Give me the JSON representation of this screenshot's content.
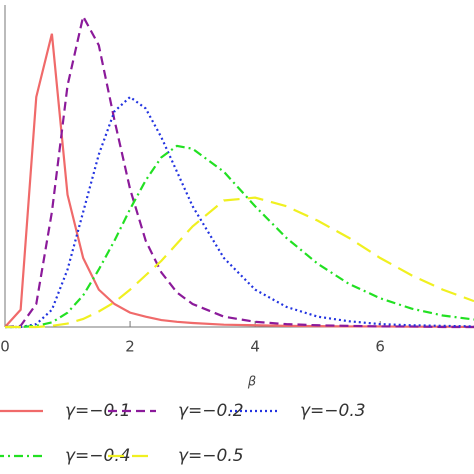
{
  "chart_data": {
    "type": "line",
    "xlabel": "β",
    "x": [
      0,
      0.25,
      0.5,
      0.75,
      1,
      1.25,
      1.5,
      1.75,
      2,
      2.25,
      2.5,
      2.75,
      3,
      3.5,
      4,
      4.5,
      5,
      5.5,
      6,
      6.5,
      7,
      7.5
    ],
    "xlim": [
      0,
      7.5
    ],
    "xticks": [
      0,
      2,
      4,
      6
    ],
    "ylim": [
      0,
      5.6
    ],
    "legend": "bottom",
    "series": [
      {
        "name": "γ=−0.1",
        "color": "#f06a6a",
        "style": "solid",
        "values": [
          0,
          0.3,
          4.0,
          5.1,
          2.3,
          1.2,
          0.65,
          0.4,
          0.25,
          0.18,
          0.12,
          0.09,
          0.07,
          0.04,
          0.03,
          0.02,
          0.015,
          0.01,
          0.01,
          0.005,
          0.005,
          0
        ]
      },
      {
        "name": "γ=−0.2",
        "color": "#8b1a9a",
        "style": "dashed",
        "values": [
          0,
          0.02,
          0.4,
          2.0,
          4.2,
          5.4,
          4.9,
          3.6,
          2.4,
          1.5,
          0.95,
          0.6,
          0.4,
          0.18,
          0.09,
          0.05,
          0.03,
          0.02,
          0.01,
          0.01,
          0,
          0
        ]
      },
      {
        "name": "γ=−0.3",
        "color": "#2233e0",
        "style": "dotted",
        "values": [
          0,
          0,
          0.05,
          0.3,
          1.0,
          2.0,
          3.0,
          3.75,
          4.0,
          3.8,
          3.3,
          2.7,
          2.1,
          1.2,
          0.65,
          0.35,
          0.18,
          0.1,
          0.05,
          0.03,
          0.02,
          0.01
        ]
      },
      {
        "name": "γ=−0.4",
        "color": "#22e022",
        "style": "dashdot",
        "values": [
          0,
          0,
          0.02,
          0.08,
          0.25,
          0.55,
          1.0,
          1.5,
          2.05,
          2.55,
          2.95,
          3.15,
          3.1,
          2.7,
          2.1,
          1.55,
          1.1,
          0.75,
          0.5,
          0.32,
          0.2,
          0.13
        ]
      },
      {
        "name": "γ=−0.5",
        "color": "#f0f020",
        "style": "longdash",
        "values": [
          0,
          0,
          0,
          0.02,
          0.06,
          0.14,
          0.27,
          0.43,
          0.65,
          0.9,
          1.15,
          1.45,
          1.75,
          2.2,
          2.25,
          2.1,
          1.85,
          1.55,
          1.2,
          0.9,
          0.65,
          0.45
        ]
      }
    ]
  }
}
